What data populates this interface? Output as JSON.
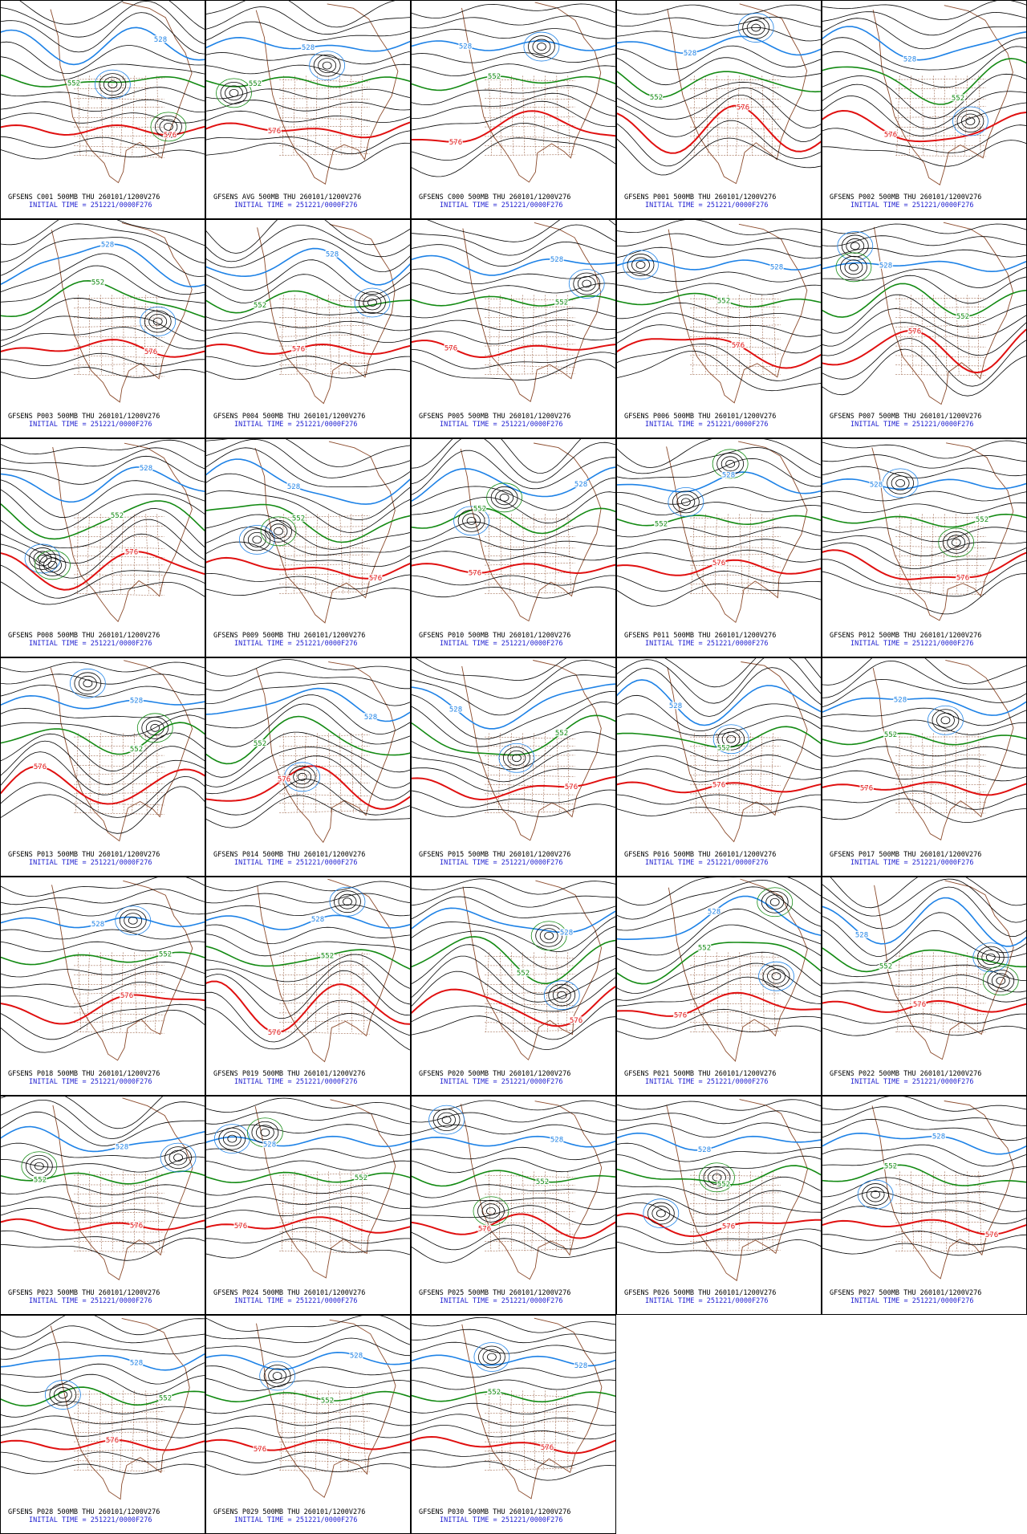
{
  "panels": [
    {
      "title": "GFSENS C001 500MB THU 260101/1200V276",
      "init_time": "INITIAL TIME = 251221/0000F276",
      "contour_labels": [
        528,
        552,
        576
      ]
    },
    {
      "title": "GFSENS AVG 500MB THU 260101/1200V276",
      "init_time": "INITIAL TIME = 251221/0000F276",
      "contour_labels": [
        528,
        552,
        576
      ]
    },
    {
      "title": "GFSENS C000 500MB THU 260101/1200V276",
      "init_time": "INITIAL TIME = 251221/0000F276",
      "contour_labels": [
        528,
        552,
        576
      ]
    },
    {
      "title": "GFSENS P001 500MB THU 260101/1200V276",
      "init_time": "INITIAL TIME = 251221/0000F276",
      "contour_labels": [
        528,
        552,
        576
      ]
    },
    {
      "title": "GFSENS P002 500MB THU 260101/1200V276",
      "init_time": "INITIAL TIME = 251221/0000F276",
      "contour_labels": [
        528,
        552,
        576
      ]
    },
    {
      "title": "GFSENS P003 500MB THU 260101/1200V276",
      "init_time": "INITIAL TIME = 251221/0000F276",
      "contour_labels": [
        528,
        552,
        576
      ]
    },
    {
      "title": "GFSENS P004 500MB THU 260101/1200V276",
      "init_time": "INITIAL TIME = 251221/0000F276",
      "contour_labels": [
        528,
        552,
        576
      ]
    },
    {
      "title": "GFSENS P005 500MB THU 260101/1200V276",
      "init_time": "INITIAL TIME = 251221/0000F276",
      "contour_labels": [
        528,
        552,
        576
      ]
    },
    {
      "title": "GFSENS P006 500MB THU 260101/1200V276",
      "init_time": "INITIAL TIME = 251221/0000F276",
      "contour_labels": [
        528,
        552,
        576
      ]
    },
    {
      "title": "GFSENS P007 500MB THU 260101/1200V276",
      "init_time": "INITIAL TIME = 251221/0000F276",
      "contour_labels": [
        528,
        552,
        576
      ]
    },
    {
      "title": "GFSENS P008 500MB THU 260101/1200V276",
      "init_time": "INITIAL TIME = 251221/0000F276",
      "contour_labels": [
        528,
        552,
        576
      ]
    },
    {
      "title": "GFSENS P009 500MB THU 260101/1200V276",
      "init_time": "INITIAL TIME = 251221/0000F276",
      "contour_labels": [
        528,
        552,
        576
      ]
    },
    {
      "title": "GFSENS P010 500MB THU 260101/1200V276",
      "init_time": "INITIAL TIME = 251221/0000F276",
      "contour_labels": [
        528,
        552,
        576
      ]
    },
    {
      "title": "GFSENS P011 500MB THU 260101/1200V276",
      "init_time": "INITIAL TIME = 251221/0000F276",
      "contour_labels": [
        528,
        552,
        576
      ]
    },
    {
      "title": "GFSENS P012 500MB THU 260101/1200V276",
      "init_time": "INITIAL TIME = 251221/0000F276",
      "contour_labels": [
        528,
        552,
        576
      ]
    },
    {
      "title": "GFSENS P013 500MB THU 260101/1200V276",
      "init_time": "INITIAL TIME = 251221/0000F276",
      "contour_labels": [
        528,
        552,
        576
      ]
    },
    {
      "title": "GFSENS P014 500MB THU 260101/1200V276",
      "init_time": "INITIAL TIME = 251221/0000F276",
      "contour_labels": [
        528,
        552,
        576
      ]
    },
    {
      "title": "GFSENS P015 500MB THU 260101/1200V276",
      "init_time": "INITIAL TIME = 251221/0000F276",
      "contour_labels": [
        528,
        552,
        576
      ]
    },
    {
      "title": "GFSENS P016 500MB THU 260101/1200V276",
      "init_time": "INITIAL TIME = 251221/0000F276",
      "contour_labels": [
        528,
        552,
        576
      ]
    },
    {
      "title": "GFSENS P017 500MB THU 260101/1200V276",
      "init_time": "INITIAL TIME = 251221/0000F276",
      "contour_labels": [
        528,
        552,
        576
      ]
    },
    {
      "title": "GFSENS P018 500MB THU 260101/1200V276",
      "init_time": "INITIAL TIME = 251221/0000F276",
      "contour_labels": [
        528,
        552,
        576
      ]
    },
    {
      "title": "GFSENS P019 500MB THU 260101/1200V276",
      "init_time": "INITIAL TIME = 251221/0000F276",
      "contour_labels": [
        528,
        552,
        576
      ]
    },
    {
      "title": "GFSENS P020 500MB THU 260101/1200V276",
      "init_time": "INITIAL TIME = 251221/0000F276",
      "contour_labels": [
        528,
        552,
        576
      ]
    },
    {
      "title": "GFSENS P021 500MB THU 260101/1200V276",
      "init_time": "INITIAL TIME = 251221/0000F276",
      "contour_labels": [
        528,
        552,
        576
      ]
    },
    {
      "title": "GFSENS P022 500MB THU 260101/1200V276",
      "init_time": "INITIAL TIME = 251221/0000F276",
      "contour_labels": [
        528,
        552,
        576
      ]
    },
    {
      "title": "GFSENS P023 500MB THU 260101/1200V276",
      "init_time": "INITIAL TIME = 251221/0000F276",
      "contour_labels": [
        528,
        552,
        576
      ]
    },
    {
      "title": "GFSENS P024 500MB THU 260101/1200V276",
      "init_time": "INITIAL TIME = 251221/0000F276",
      "contour_labels": [
        528,
        552,
        576
      ]
    },
    {
      "title": "GFSENS P025 500MB THU 260101/1200V276",
      "init_time": "INITIAL TIME = 251221/0000F276",
      "contour_labels": [
        528,
        552,
        576
      ]
    },
    {
      "title": "GFSENS P026 500MB THU 260101/1200V276",
      "init_time": "INITIAL TIME = 251221/0000F276",
      "contour_labels": [
        528,
        552,
        576
      ]
    },
    {
      "title": "GFSENS P027 500MB THU 260101/1200V276",
      "init_time": "INITIAL TIME = 251221/0000F276",
      "contour_labels": [
        528,
        552,
        576
      ]
    },
    {
      "title": "GFSENS P028 500MB THU 260101/1200V276",
      "init_time": "INITIAL TIME = 251221/0000F276",
      "contour_labels": [
        528,
        552,
        576
      ]
    },
    {
      "title": "GFSENS P029 500MB THU 260101/1200V276",
      "init_time": "INITIAL TIME = 251221/0000F276",
      "contour_labels": [
        528,
        552,
        576
      ]
    },
    {
      "title": "GFSENS P030 500MB THU 260101/1200V276",
      "init_time": "INITIAL TIME = 251221/0000F276",
      "contour_labels": [
        528,
        552,
        576
      ]
    }
  ]
}
